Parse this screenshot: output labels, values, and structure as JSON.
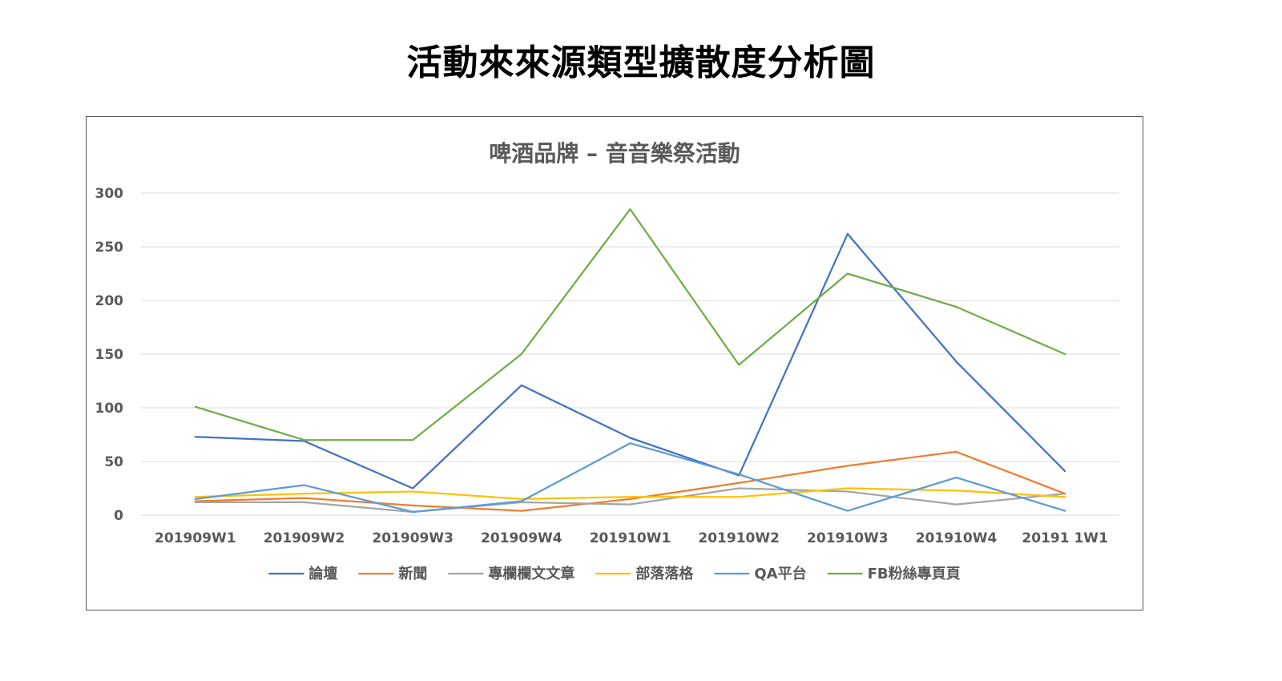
{
  "page": {
    "title": "活動來來源類型擴散度分析圖"
  },
  "chart_data": {
    "type": "line",
    "title": "啤酒品牌 – 音音樂祭活動",
    "xlabel": "",
    "ylabel": "",
    "ylim": [
      0,
      300
    ],
    "yticks": [
      0,
      50,
      100,
      150,
      200,
      250,
      300
    ],
    "grid": true,
    "legend_position": "bottom",
    "categories": [
      "201909W1",
      "201909W2",
      "201909W3",
      "201909W4",
      "201910W1",
      "201910W2",
      "201910W3",
      "201910W4",
      "20191 1W1"
    ],
    "series": [
      {
        "name": "論壇",
        "color": "#4472C4",
        "values": [
          73,
          69,
          25,
          121,
          72,
          37,
          262,
          143,
          41
        ]
      },
      {
        "name": "新聞",
        "color": "#ED7D31",
        "values": [
          13,
          16,
          9,
          4,
          15,
          30,
          46,
          59,
          20
        ]
      },
      {
        "name": "專欄欄文文章",
        "color": "#A5A5A5",
        "values": [
          12,
          12,
          3,
          12,
          10,
          25,
          22,
          10,
          20
        ]
      },
      {
        "name": "部落落格",
        "color": "#FFC000",
        "values": [
          17,
          20,
          22,
          15,
          17,
          17,
          25,
          23,
          17
        ]
      },
      {
        "name": "QA平台",
        "color": "#5B9BD5",
        "values": [
          15,
          28,
          3,
          13,
          67,
          38,
          4,
          35,
          4
        ]
      },
      {
        "name": "FB粉絲專頁頁",
        "color": "#70AD47",
        "values": [
          101,
          70,
          70,
          150,
          285,
          140,
          225,
          194,
          150
        ]
      }
    ]
  }
}
